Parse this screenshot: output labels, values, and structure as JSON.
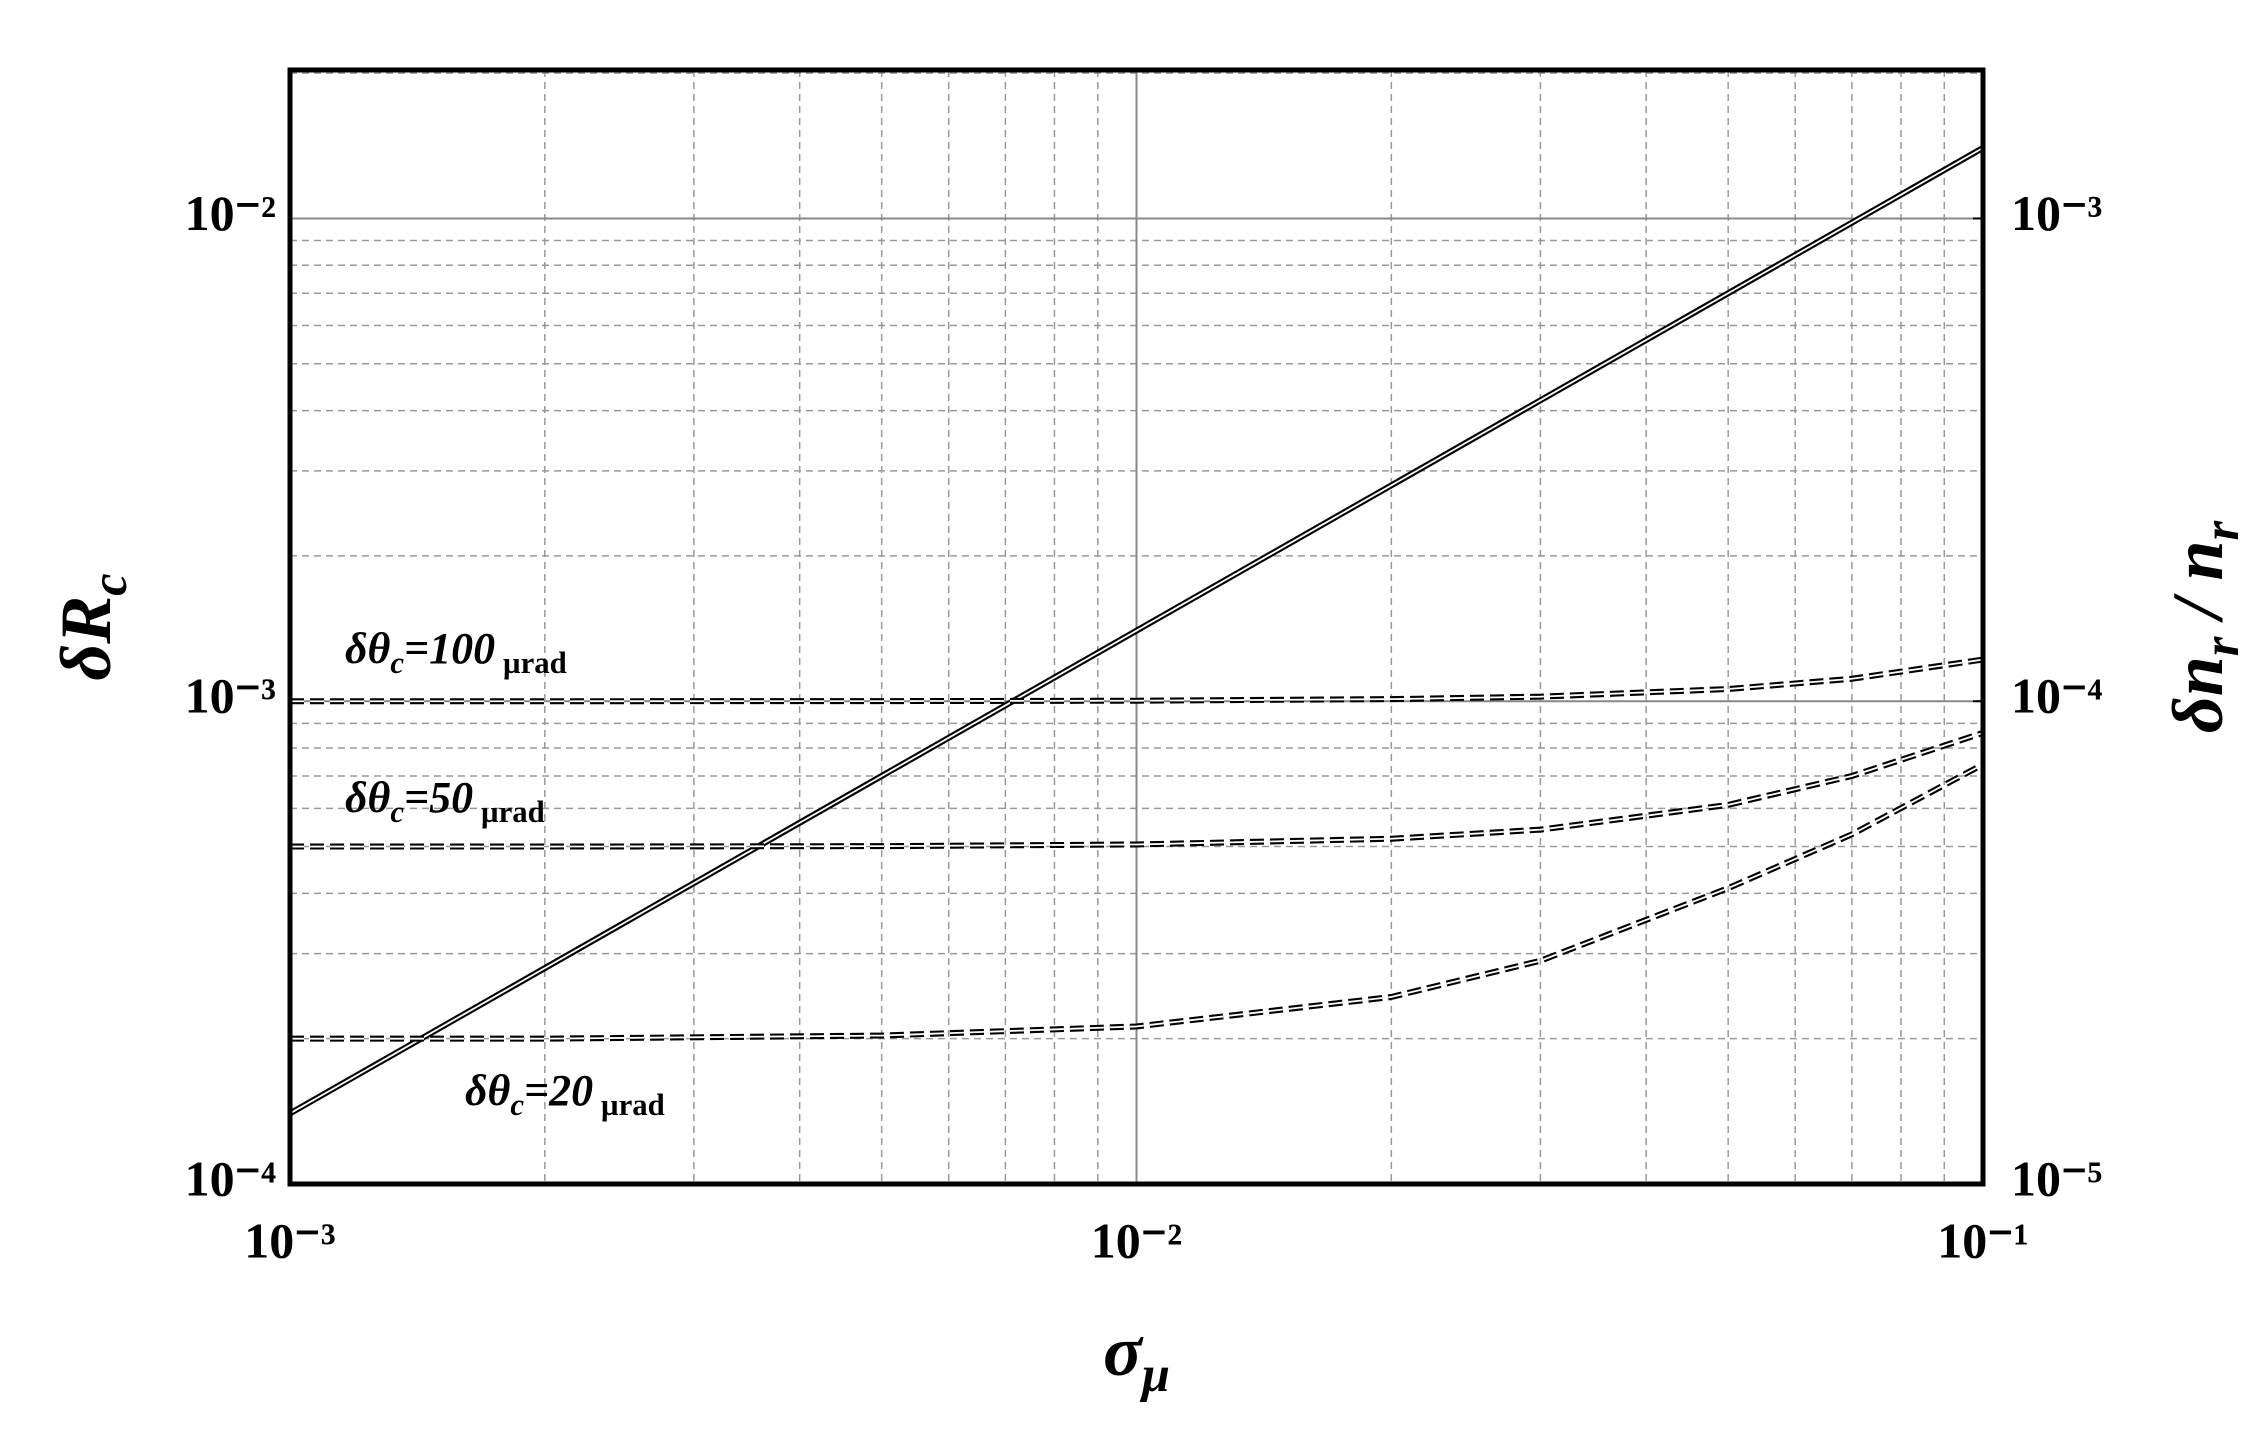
{
  "chart_data": {
    "type": "line",
    "xlabel": [
      "σ",
      "μ"
    ],
    "ylabel": [
      "δR",
      "c"
    ],
    "y2label": [
      "δn",
      "r",
      " / n",
      "r"
    ],
    "xlog": true,
    "ylog": true,
    "grid": true,
    "xlim": [
      0.001,
      0.1
    ],
    "xticks": [
      {
        "value": 0.001,
        "label": "10⁻³"
      },
      {
        "value": 0.01,
        "label": "10⁻²"
      },
      {
        "value": 0.1,
        "label": "10⁻¹"
      }
    ],
    "xminor": [
      0.002,
      0.003,
      0.004,
      0.005,
      0.006,
      0.007,
      0.008,
      0.009,
      0.02,
      0.03,
      0.04,
      0.05,
      0.06,
      0.07,
      0.08,
      0.09
    ],
    "ylim": [
      0.0001,
      0.0203
    ],
    "yticks": [
      {
        "value": 0.0001,
        "label": "10⁻⁴"
      },
      {
        "value": 0.001,
        "label": "10⁻³"
      },
      {
        "value": 0.01,
        "label": "10⁻²"
      }
    ],
    "yminor": [
      0.0002,
      0.0003,
      0.0004,
      0.0005,
      0.0006,
      0.0007,
      0.0008,
      0.0009,
      0.002,
      0.003,
      0.004,
      0.005,
      0.006,
      0.007,
      0.008,
      0.009,
      0.02
    ],
    "y2lim": [
      1e-05,
      0.00203
    ],
    "y2ticks": [
      {
        "value": 1e-05,
        "label": "10⁻⁵"
      },
      {
        "value": 0.0001,
        "label": "10⁻⁴"
      },
      {
        "value": 0.001,
        "label": "10⁻³"
      }
    ],
    "color": "#000000",
    "series": [
      {
        "x": [
          0.001,
          0.1
        ],
        "values": [
          0.00014,
          0.014
        ],
        "style": "solid"
      },
      {
        "x": [
          0.001,
          0.002,
          0.005,
          0.01,
          0.02,
          0.03,
          0.05,
          0.07,
          0.1
        ],
        "values": [
          0.001,
          0.001,
          0.0010006,
          0.0010024,
          0.00101,
          0.001022,
          0.00106,
          0.001113,
          0.00122
        ],
        "style": "dashed"
      },
      {
        "x": [
          0.001,
          0.002,
          0.005,
          0.01,
          0.02,
          0.03,
          0.05,
          0.07,
          0.1
        ],
        "values": [
          0.0005,
          0.0005,
          0.000501,
          0.000505,
          0.000519,
          0.000542,
          0.00061,
          0.0007,
          0.00086
        ],
        "style": "dashed"
      },
      {
        "x": [
          0.001,
          0.002,
          0.005,
          0.01,
          0.02,
          0.03,
          0.05,
          0.07,
          0.1
        ],
        "values": [
          0.0002,
          0.0002,
          0.000203,
          0.000212,
          0.000244,
          0.00029,
          0.00041,
          0.00053,
          0.00074
        ],
        "style": "dashed"
      }
    ],
    "annotations": [
      [
        "δθ",
        "c",
        "=100",
        " µrad"
      ],
      [
        "δθ",
        "c",
        "=50",
        " µrad"
      ],
      [
        "δθ",
        "c",
        "=20",
        " µrad"
      ]
    ]
  }
}
